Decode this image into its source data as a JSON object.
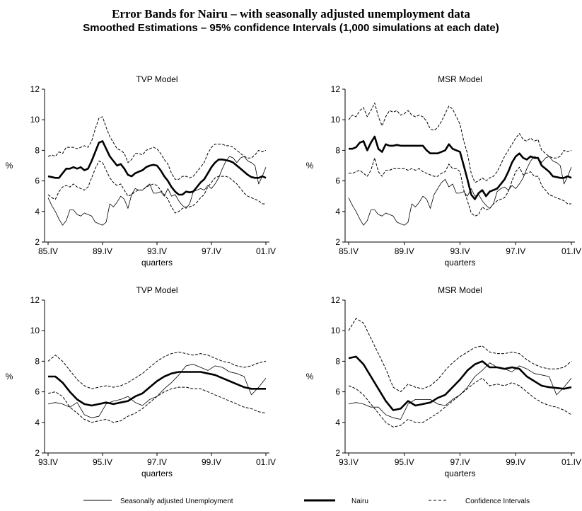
{
  "title": "Error Bands for Nairu – with seasonally adjusted unemployment data",
  "subtitle": "Smoothed Estimations – 95% confidence Intervals (1,000 simulations at each date)",
  "legend": {
    "unemployment": "Seasonally adjusted  Unemployment",
    "nairu": "Nairu",
    "ci": "Confidence Intervals"
  },
  "chart_data": [
    {
      "type": "line",
      "title": "TVP Model",
      "xlabel": "quarters",
      "ylabel": "%",
      "ylim": [
        2,
        12
      ],
      "yticks": [
        2,
        4,
        6,
        8,
        10,
        12
      ],
      "xticks": [
        "85.IV",
        "89.IV",
        "93.IV",
        "97.IV",
        "01.IV"
      ],
      "x_start": "85.IV",
      "x_end": "01.IV",
      "series": [
        {
          "name": "Seasonally adjusted  Unemployment",
          "style": "thin",
          "values": [
            4.9,
            4.4,
            4.0,
            3.5,
            3.1,
            3.4,
            4.1,
            4.1,
            3.8,
            3.7,
            3.9,
            3.8,
            3.7,
            3.3,
            3.2,
            3.1,
            3.3,
            4.5,
            4.3,
            4.6,
            5.0,
            4.8,
            4.2,
            5.1,
            5.5,
            5.4,
            5.4,
            5.6,
            5.8,
            5.2,
            5.2,
            5.3,
            5.0,
            5.5,
            5.0,
            5.1,
            4.7,
            4.4,
            4.2,
            4.5,
            5.3,
            5.4,
            5.5,
            5.4,
            5.7,
            5.5,
            5.8,
            6.2,
            6.8,
            7.3,
            7.6,
            7.5,
            7.2,
            7.5,
            7.6,
            7.3,
            7.2,
            7.0,
            5.8,
            6.3,
            6.9
          ]
        },
        {
          "name": "Nairu",
          "style": "thick",
          "values": [
            6.3,
            6.25,
            6.2,
            6.2,
            6.5,
            6.8,
            6.8,
            6.9,
            6.8,
            6.9,
            6.7,
            6.8,
            7.3,
            7.9,
            8.5,
            8.6,
            8.1,
            7.6,
            7.3,
            7.0,
            7.1,
            6.8,
            6.4,
            6.3,
            6.5,
            6.6,
            6.7,
            6.9,
            7.0,
            7.05,
            7.0,
            6.7,
            6.3,
            6.0,
            5.6,
            5.3,
            5.1,
            5.1,
            5.3,
            5.25,
            5.3,
            5.6,
            5.9,
            6.1,
            6.5,
            6.9,
            7.2,
            7.4,
            7.4,
            7.35,
            7.3,
            7.2,
            7.0,
            6.8,
            6.6,
            6.4,
            6.25,
            6.2,
            6.2,
            6.3,
            6.2
          ]
        },
        {
          "name": "Upper",
          "style": "dashed",
          "values": [
            7.6,
            7.7,
            7.6,
            7.9,
            7.8,
            8.2,
            8.2,
            8.2,
            8.1,
            8.2,
            8.3,
            8.2,
            8.6,
            9.4,
            10.1,
            10.2,
            9.5,
            8.9,
            8.5,
            8.1,
            8.0,
            7.8,
            7.2,
            7.4,
            7.8,
            7.8,
            7.7,
            8.0,
            8.1,
            8.2,
            8.1,
            7.8,
            7.4,
            7.1,
            6.5,
            6.1,
            6.1,
            6.3,
            6.3,
            6.2,
            6.3,
            6.6,
            6.9,
            7.2,
            7.8,
            8.2,
            8.4,
            8.4,
            8.4,
            8.3,
            8.3,
            8.2,
            8.0,
            7.8,
            7.6,
            7.5,
            7.5,
            7.7,
            8.0,
            7.9,
            8.0
          ]
        },
        {
          "name": "Lower",
          "style": "dashed",
          "values": [
            5.1,
            4.9,
            4.8,
            5.3,
            5.6,
            5.7,
            5.6,
            5.8,
            5.6,
            5.5,
            5.4,
            5.6,
            6.2,
            6.8,
            7.3,
            7.2,
            6.7,
            6.2,
            5.9,
            5.7,
            5.8,
            5.4,
            5.0,
            5.1,
            5.3,
            5.4,
            5.4,
            5.6,
            5.7,
            5.8,
            5.7,
            5.4,
            5.1,
            4.8,
            4.3,
            3.9,
            4.0,
            4.2,
            4.3,
            4.3,
            4.4,
            4.6,
            4.9,
            5.1,
            5.6,
            5.9,
            6.2,
            6.3,
            6.3,
            6.3,
            6.2,
            6.0,
            5.8,
            5.5,
            5.2,
            5.0,
            4.9,
            4.8,
            4.7,
            4.5,
            4.5
          ]
        }
      ]
    },
    {
      "type": "line",
      "title": "MSR Model",
      "xlabel": "quarters",
      "ylabel": "%",
      "ylim": [
        2,
        12
      ],
      "yticks": [
        2,
        4,
        6,
        8,
        10,
        12
      ],
      "xticks": [
        "85.IV",
        "89.IV",
        "93.IV",
        "97.IV",
        "01.IV"
      ],
      "x_start": "85.IV",
      "x_end": "01.IV",
      "series": [
        {
          "name": "Seasonally adjusted  Unemployment",
          "style": "thin",
          "values": [
            4.9,
            4.4,
            4.0,
            3.5,
            3.1,
            3.4,
            4.1,
            4.1,
            3.8,
            3.7,
            3.9,
            3.8,
            3.7,
            3.3,
            3.2,
            3.1,
            3.3,
            4.5,
            4.3,
            4.6,
            5.0,
            4.8,
            4.2,
            5.1,
            5.5,
            5.9,
            6.1,
            5.6,
            5.8,
            5.2,
            5.2,
            5.3,
            5.0,
            5.5,
            5.0,
            5.1,
            4.7,
            4.4,
            4.2,
            4.5,
            5.3,
            5.5,
            5.6,
            5.4,
            5.7,
            5.5,
            5.8,
            6.2,
            6.8,
            7.3,
            7.6,
            7.5,
            7.2,
            7.5,
            7.6,
            7.3,
            7.2,
            7.0,
            5.8,
            6.3,
            6.9
          ]
        },
        {
          "name": "Nairu",
          "style": "thick",
          "values": [
            8.1,
            8.1,
            8.2,
            8.5,
            8.6,
            8.0,
            8.5,
            8.9,
            8.1,
            7.9,
            8.4,
            8.3,
            8.3,
            8.35,
            8.3,
            8.3,
            8.3,
            8.3,
            8.3,
            8.3,
            8.3,
            8.0,
            7.8,
            7.8,
            7.8,
            7.9,
            8.0,
            8.4,
            8.1,
            8.0,
            7.9,
            7.0,
            6.1,
            5.1,
            4.8,
            5.2,
            5.4,
            5.0,
            5.3,
            5.4,
            5.5,
            5.8,
            6.1,
            6.6,
            7.2,
            7.6,
            7.8,
            7.5,
            7.4,
            7.6,
            7.5,
            7.5,
            7.0,
            6.8,
            6.6,
            6.3,
            6.25,
            6.2,
            6.2,
            6.3,
            6.2
          ]
        },
        {
          "name": "Upper",
          "style": "dashed",
          "values": [
            10.0,
            10.3,
            10.2,
            10.6,
            10.8,
            10.2,
            10.6,
            11.1,
            10.2,
            9.6,
            10.2,
            10.6,
            10.5,
            10.6,
            10.3,
            10.4,
            10.6,
            10.3,
            10.2,
            10.3,
            10.2,
            9.9,
            9.4,
            9.3,
            9.5,
            9.9,
            10.4,
            10.9,
            10.7,
            10.2,
            9.7,
            8.6,
            7.8,
            6.5,
            5.9,
            6.0,
            6.2,
            6.0,
            6.2,
            6.3,
            6.6,
            7.1,
            7.6,
            8.0,
            8.4,
            8.8,
            9.1,
            8.7,
            8.6,
            8.8,
            8.6,
            8.7,
            8.0,
            7.8,
            7.6,
            7.5,
            7.5,
            7.6,
            8.0,
            7.9,
            8.0
          ]
        },
        {
          "name": "Lower",
          "style": "dashed",
          "values": [
            6.5,
            6.5,
            6.6,
            6.7,
            6.5,
            6.3,
            6.7,
            7.5,
            6.6,
            6.3,
            6.7,
            6.7,
            6.8,
            6.8,
            6.8,
            6.8,
            6.7,
            6.8,
            6.7,
            6.8,
            6.6,
            6.5,
            6.4,
            6.3,
            6.3,
            6.5,
            6.6,
            7.1,
            6.8,
            6.8,
            6.6,
            5.4,
            4.7,
            3.9,
            3.7,
            3.8,
            4.3,
            4.1,
            4.2,
            4.5,
            4.7,
            4.8,
            4.9,
            5.3,
            6.0,
            6.6,
            6.9,
            6.4,
            6.5,
            6.6,
            6.3,
            6.3,
            5.7,
            5.4,
            5.1,
            5.0,
            4.9,
            4.8,
            4.7,
            4.5,
            4.5
          ]
        }
      ]
    },
    {
      "type": "line",
      "title": "TVP Model",
      "xlabel": "quarters",
      "ylabel": "%",
      "ylim": [
        2,
        12
      ],
      "yticks": [
        2,
        4,
        6,
        8,
        10,
        12
      ],
      "xticks": [
        "93.IV",
        "95.IV",
        "97.IV",
        "99.IV",
        "01.IV"
      ],
      "x_start": "93.IV",
      "x_end": "01.IV",
      "series": [
        {
          "name": "Seasonally adjusted  Unemployment",
          "style": "thin",
          "values": [
            5.2,
            5.3,
            5.2,
            5.0,
            5.3,
            4.5,
            4.3,
            4.4,
            5.2,
            5.4,
            5.5,
            5.7,
            5.3,
            5.1,
            5.5,
            5.7,
            6.2,
            6.6,
            7.1,
            7.7,
            7.8,
            7.6,
            7.4,
            7.7,
            7.6,
            7.3,
            7.2,
            7.0,
            5.8,
            6.3,
            6.9
          ]
        },
        {
          "name": "Nairu",
          "style": "thick",
          "values": [
            7.0,
            7.0,
            6.6,
            6.0,
            5.5,
            5.2,
            5.1,
            5.2,
            5.3,
            5.2,
            5.3,
            5.4,
            5.7,
            5.9,
            6.3,
            6.7,
            7.0,
            7.2,
            7.3,
            7.3,
            7.3,
            7.3,
            7.2,
            7.1,
            6.9,
            6.7,
            6.5,
            6.3,
            6.2,
            6.2,
            6.2
          ]
        },
        {
          "name": "Upper",
          "style": "dashed",
          "values": [
            8.0,
            8.4,
            8.0,
            7.4,
            6.8,
            6.4,
            6.2,
            6.3,
            6.4,
            6.3,
            6.4,
            6.6,
            6.9,
            7.2,
            7.6,
            8.0,
            8.3,
            8.5,
            8.6,
            8.5,
            8.4,
            8.5,
            8.4,
            8.2,
            8.0,
            7.9,
            7.7,
            7.6,
            7.7,
            7.9,
            8.0
          ]
        },
        {
          "name": "Lower",
          "style": "dashed",
          "values": [
            5.9,
            6.0,
            5.7,
            5.0,
            4.6,
            4.2,
            4.0,
            4.1,
            4.2,
            4.0,
            4.1,
            4.4,
            4.6,
            4.9,
            5.3,
            5.7,
            6.0,
            6.2,
            6.3,
            6.3,
            6.2,
            6.2,
            6.0,
            5.8,
            5.6,
            5.4,
            5.2,
            5.0,
            4.9,
            4.7,
            4.6
          ]
        }
      ]
    },
    {
      "type": "line",
      "title": "MSR Model",
      "xlabel": "quarters",
      "ylabel": "%",
      "ylim": [
        2,
        12
      ],
      "yticks": [
        2,
        4,
        6,
        8,
        10,
        12
      ],
      "xticks": [
        "93.IV",
        "95.IV",
        "97.IV",
        "99.IV",
        "01.IV"
      ],
      "x_start": "93.IV",
      "x_end": "01.IV",
      "series": [
        {
          "name": "Seasonally adjusted  Unemployment",
          "style": "thin",
          "values": [
            5.2,
            5.3,
            5.2,
            5.0,
            5.0,
            4.5,
            4.3,
            4.2,
            5.2,
            5.5,
            5.5,
            5.5,
            5.2,
            5.1,
            5.5,
            5.8,
            6.3,
            7.0,
            7.4,
            7.9,
            7.6,
            7.5,
            7.3,
            7.7,
            7.5,
            7.2,
            7.1,
            7.0,
            5.8,
            6.3,
            6.9
          ]
        },
        {
          "name": "Nairu",
          "style": "thick",
          "values": [
            8.2,
            8.3,
            7.8,
            7.0,
            6.2,
            5.4,
            4.8,
            4.9,
            5.4,
            5.1,
            5.2,
            5.3,
            5.6,
            5.8,
            6.3,
            6.8,
            7.4,
            7.8,
            8.0,
            7.6,
            7.6,
            7.5,
            7.6,
            7.5,
            7.0,
            6.7,
            6.4,
            6.3,
            6.25,
            6.2,
            6.3
          ]
        },
        {
          "name": "Upper",
          "style": "dashed",
          "values": [
            10.0,
            10.8,
            10.5,
            9.5,
            8.5,
            7.5,
            6.3,
            6.0,
            6.5,
            6.3,
            6.2,
            6.4,
            6.8,
            7.4,
            7.9,
            8.3,
            8.6,
            8.9,
            9.0,
            8.6,
            8.5,
            8.5,
            8.6,
            8.5,
            8.1,
            7.8,
            7.6,
            7.5,
            7.5,
            7.6,
            8.0
          ]
        },
        {
          "name": "Lower",
          "style": "dashed",
          "values": [
            6.4,
            6.2,
            5.8,
            5.2,
            4.6,
            4.0,
            3.7,
            3.8,
            4.2,
            4.0,
            4.0,
            4.3,
            4.6,
            5.0,
            5.4,
            5.8,
            6.2,
            6.6,
            6.9,
            6.4,
            6.5,
            6.4,
            6.6,
            6.4,
            6.0,
            5.6,
            5.3,
            5.1,
            5.0,
            4.8,
            4.5
          ]
        }
      ]
    }
  ]
}
